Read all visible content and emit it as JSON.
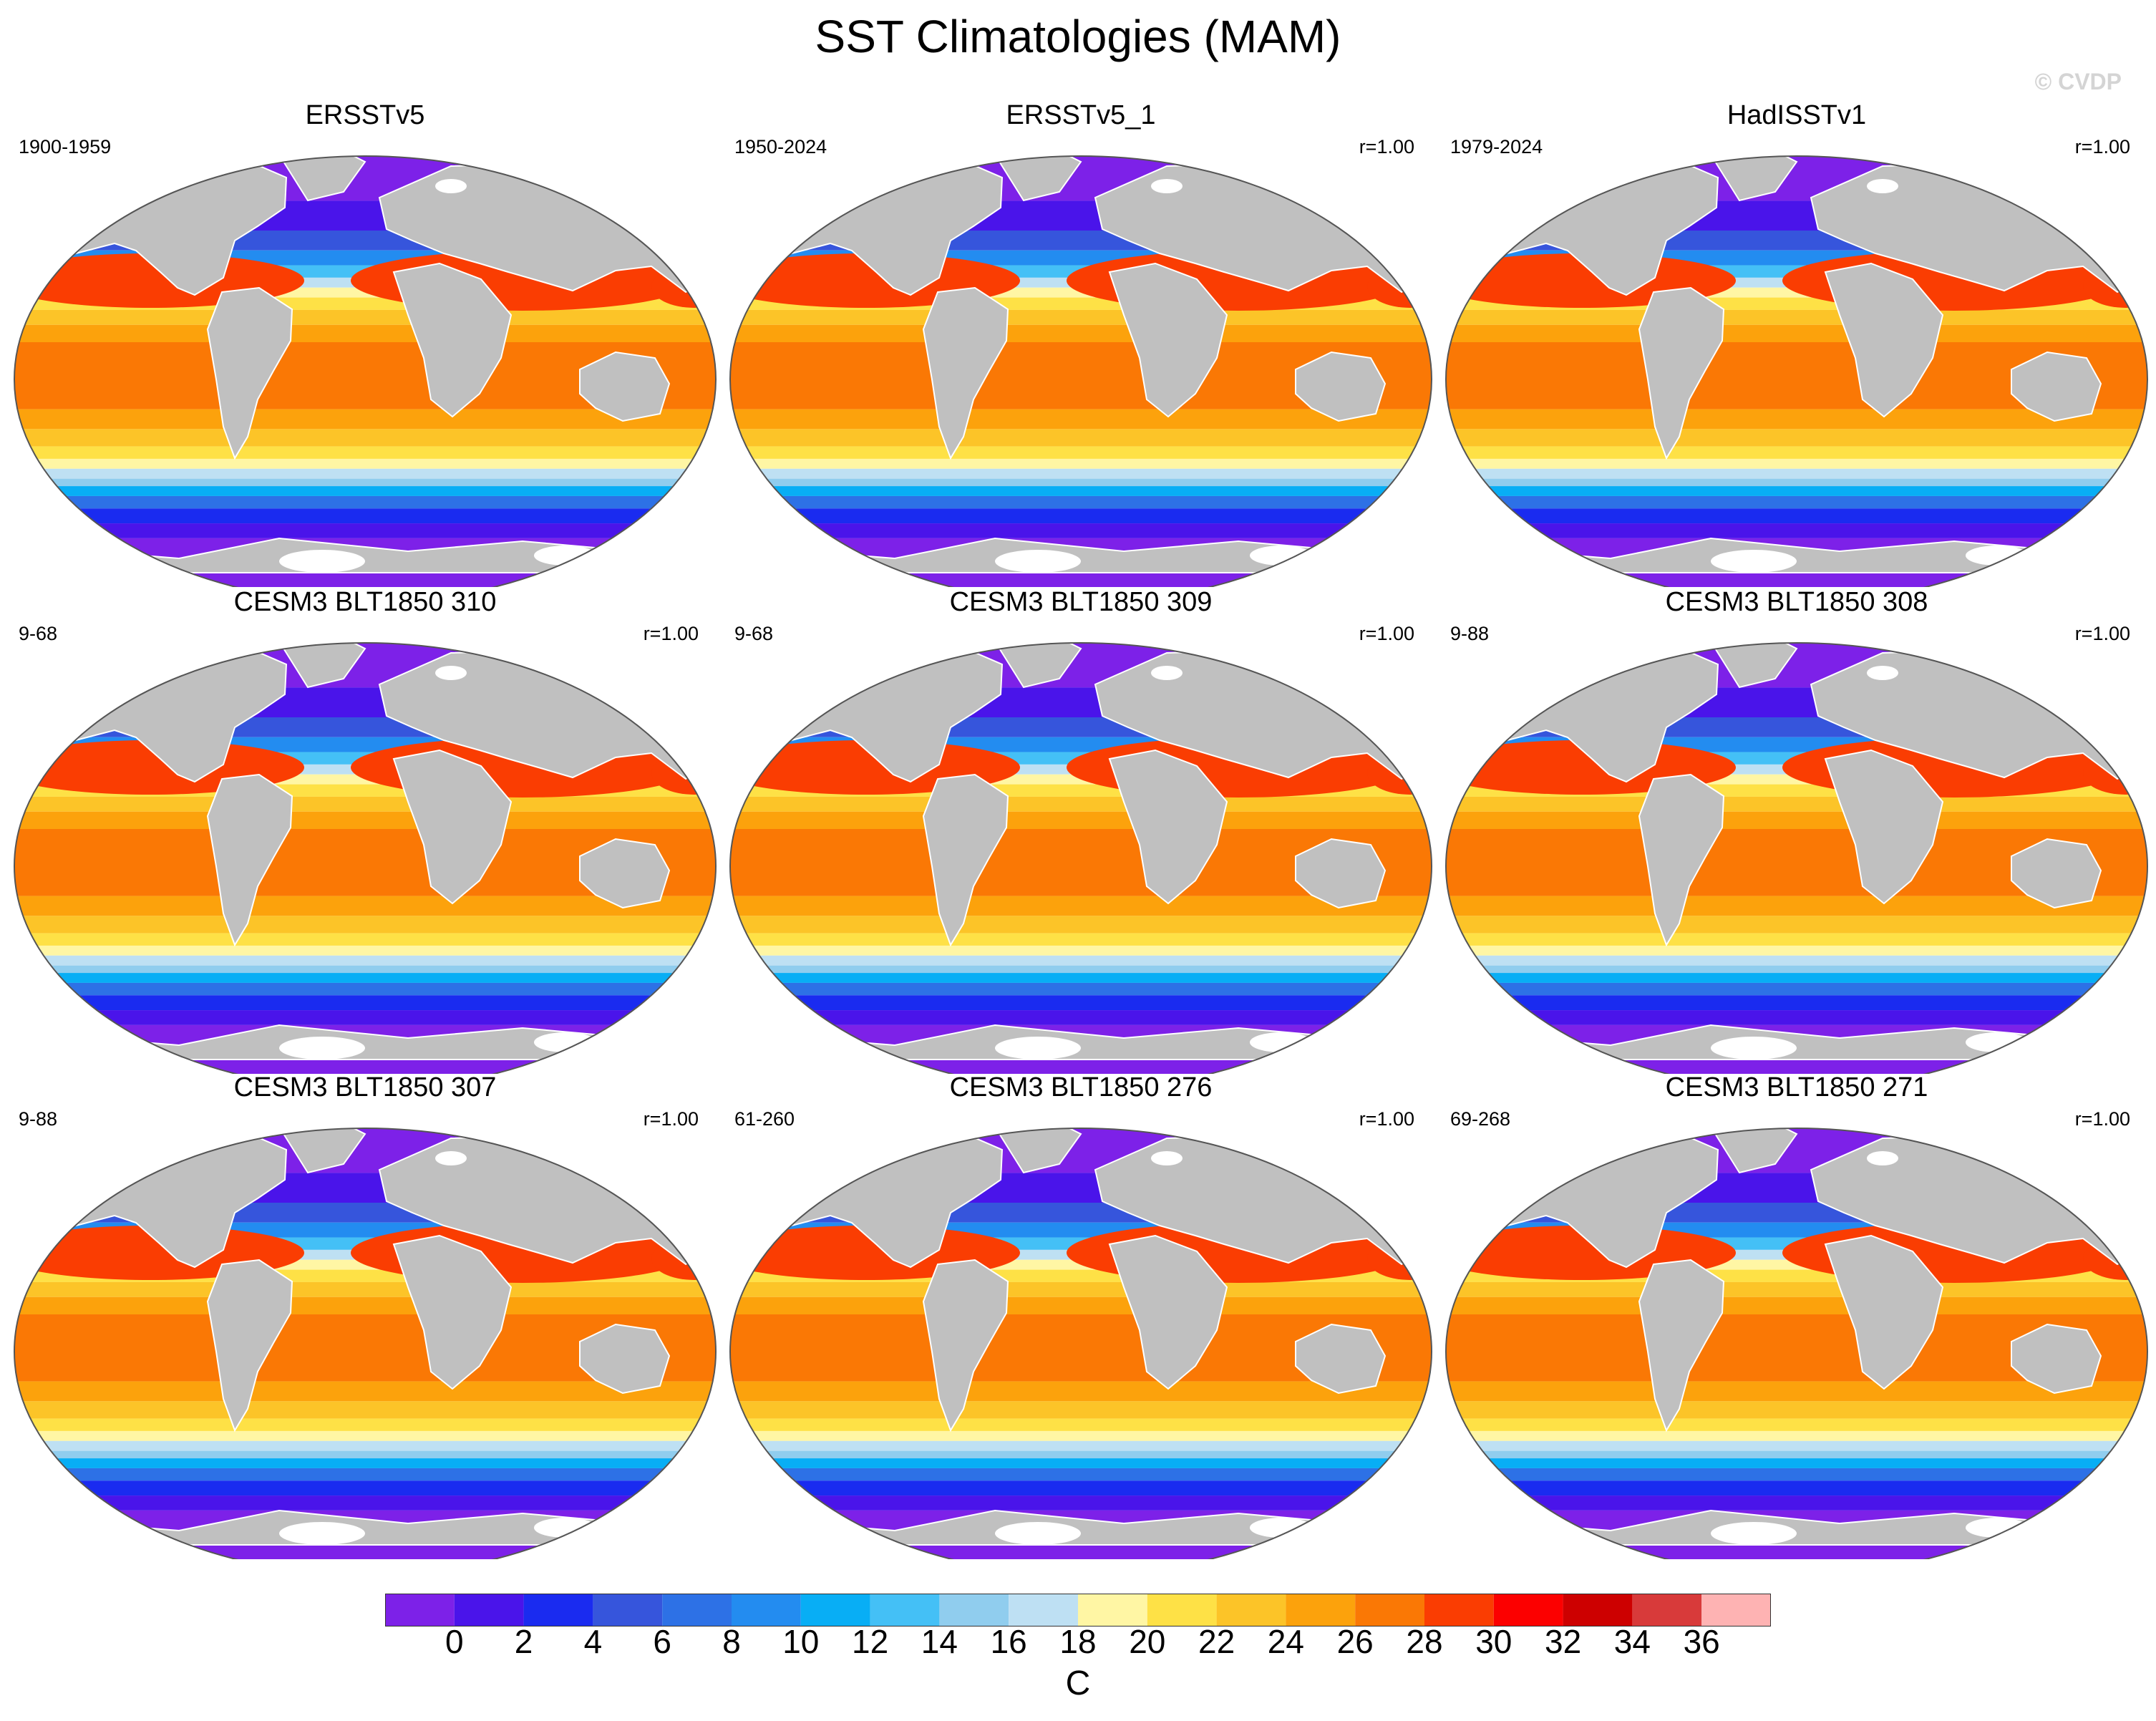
{
  "title": "SST Climatologies (MAM)",
  "watermark": "© CVDP",
  "panels": [
    {
      "name": "ERSSTv5",
      "period": "1900-1959",
      "corr": ""
    },
    {
      "name": "ERSSTv5_1",
      "period": "1950-2024",
      "corr": "r=1.00"
    },
    {
      "name": "HadISSTv1",
      "period": "1979-2024",
      "corr": "r=1.00"
    },
    {
      "name": "CESM3 BLT1850 310",
      "period": "9-68",
      "corr": "r=1.00"
    },
    {
      "name": "CESM3 BLT1850 309",
      "period": "9-68",
      "corr": "r=1.00"
    },
    {
      "name": "CESM3 BLT1850 308",
      "period": "9-88",
      "corr": "r=1.00"
    },
    {
      "name": "CESM3 BLT1850 307",
      "period": "9-88",
      "corr": "r=1.00"
    },
    {
      "name": "CESM3 BLT1850 276",
      "period": "61-260",
      "corr": "r=1.00"
    },
    {
      "name": "CESM3 BLT1850 271",
      "period": "69-268",
      "corr": "r=1.00"
    }
  ],
  "colorbar": {
    "unit": "C",
    "labels": [
      "0",
      "2",
      "4",
      "6",
      "8",
      "10",
      "12",
      "14",
      "16",
      "18",
      "20",
      "22",
      "24",
      "26",
      "28",
      "30",
      "32",
      "34",
      "36"
    ],
    "colors": [
      "#7d21e8",
      "#4a14ea",
      "#1a2bf0",
      "#3655dc",
      "#2d71e6",
      "#238cf0",
      "#08aef5",
      "#44c0f6",
      "#90cdee",
      "#bee0f3",
      "#fff6a4",
      "#fee146",
      "#fcc428",
      "#fca20c",
      "#fa7805",
      "#fa3d02",
      "#fc0000",
      "#cd0000",
      "#d83a3a",
      "#feb3b3"
    ]
  },
  "map": {
    "land_color": "#c0c0c0",
    "ice_color": "#ffffff"
  }
}
